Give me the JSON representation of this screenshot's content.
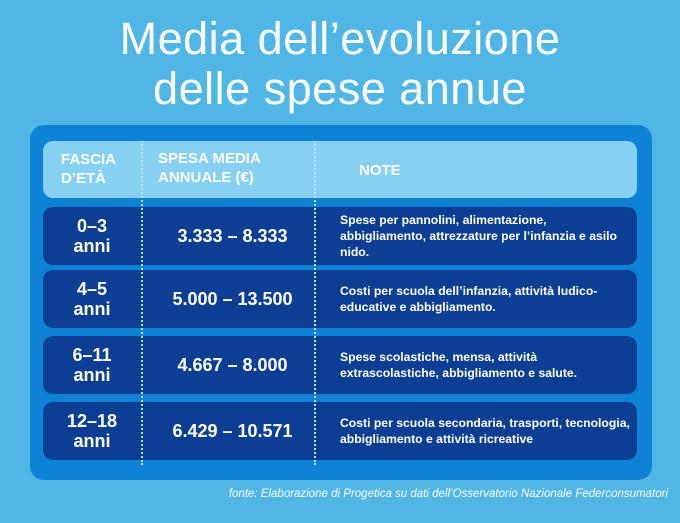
{
  "title": {
    "line1": "Media dell’evoluzione",
    "line2": "delle spese annue"
  },
  "table": {
    "headers": {
      "fascia_line1": "FASCIA",
      "fascia_line2": "D’ETÀ",
      "spesa_line1": "SPESA MEDIA",
      "spesa_line2": "ANNUALE (€)",
      "note": "NOTE"
    },
    "rows": [
      {
        "age_line1": "0–3",
        "age_line2": "anni",
        "range": "3.333 – 8.333",
        "note": "Spese per pannolini, alimentazione, abbigliamento, attrezzature per l’infanzia e asilo nido."
      },
      {
        "age_line1": "4–5",
        "age_line2": "anni",
        "range": "5.000 – 13.500",
        "note": "Costi per scuola dell’infanzia, attività ludico-educative e abbigliamento."
      },
      {
        "age_line1": "6–11",
        "age_line2": "anni",
        "range": "4.667 – 8.000",
        "note": "Spese scolastiche, mensa, attività extrascolastiche, abbigliamento e salute."
      },
      {
        "age_line1": "12–18",
        "age_line2": "anni",
        "range": "6.429 – 10.571",
        "note": "Costi per scuola secondaria, trasporti, tecnologia, abbigliamento e attività ricreative"
      }
    ]
  },
  "source": "fonte: Elaborazione di Progetica su dati dell’Osservatorio Nazionale Federconsumatori",
  "colors": {
    "background": "#4fb6e6",
    "panel": "#0e82d4",
    "header": "#86d1f2",
    "row": "#0c3f94",
    "text": "#ffffff"
  }
}
